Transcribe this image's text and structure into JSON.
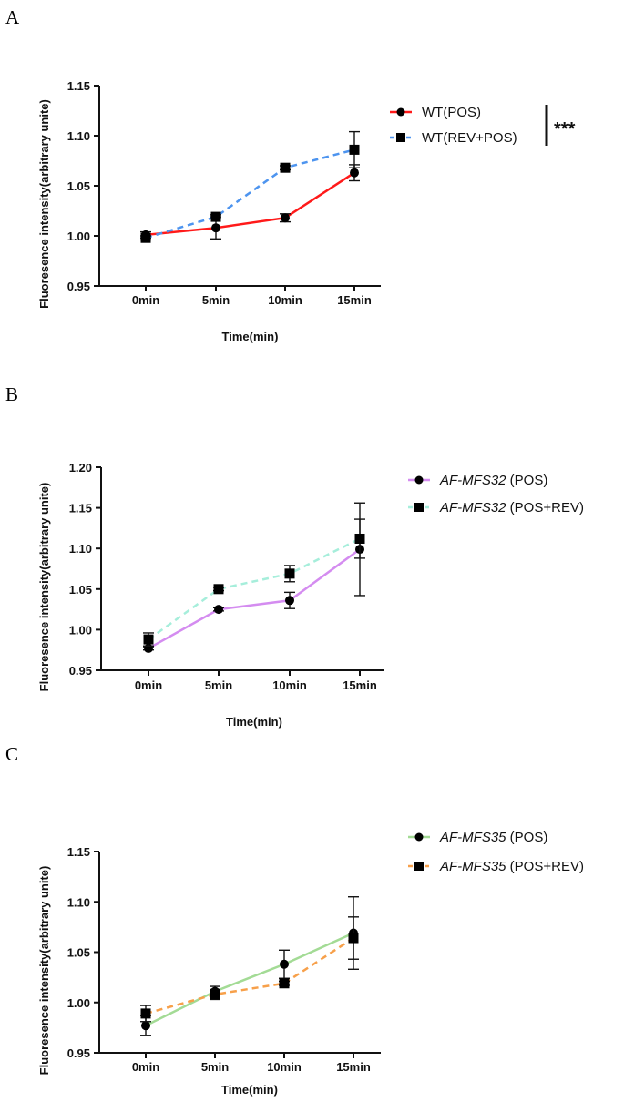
{
  "chart_data": [
    {
      "panel": "A",
      "type": "line",
      "xlabel": "Time(min)",
      "ylabel": "Fluoresence intensity(arbitrary unite)",
      "categories": [
        "0min",
        "5min",
        "10min",
        "15min"
      ],
      "ylim": [
        0.95,
        1.15
      ],
      "yticks": [
        "0.95",
        "1.00",
        "1.05",
        "1.10",
        "1.15"
      ],
      "grid": false,
      "legend_position": "right",
      "significance": "***",
      "series": [
        {
          "name": "WT(POS)",
          "name_italic": "",
          "name_rest": "WT(POS)",
          "color": "#ff1a1a",
          "dash": false,
          "marker": "circle",
          "values": [
            1.001,
            1.008,
            1.018,
            1.063
          ],
          "errors": [
            0.003,
            0.011,
            0.004,
            0.008
          ]
        },
        {
          "name": "WT(REV+POS)",
          "name_italic": "",
          "name_rest": "WT(REV+POS)",
          "color": "#4d94ef",
          "dash": true,
          "marker": "square",
          "values": [
            0.998,
            1.019,
            1.068,
            1.086
          ],
          "errors": [
            0.002,
            0.002,
            0.002,
            0.018
          ]
        }
      ]
    },
    {
      "panel": "B",
      "type": "line",
      "xlabel": "Time(min)",
      "ylabel": "Fluoresence intensity(arbitrary unite)",
      "categories": [
        "0min",
        "5min",
        "10min",
        "15min"
      ],
      "ylim": [
        0.95,
        1.2
      ],
      "yticks": [
        "0.95",
        "1.00",
        "1.05",
        "1.10",
        "1.15",
        "1.20"
      ],
      "grid": false,
      "legend_position": "right",
      "series": [
        {
          "name": "AF-MFS32 (POS)",
          "name_italic": "AF-MFS32",
          "name_rest": " (POS)",
          "color": "#d48cf0",
          "dash": false,
          "marker": "circle",
          "values": [
            0.977,
            1.025,
            1.036,
            1.099
          ],
          "errors": [
            0.002,
            0.002,
            0.01,
            0.057
          ]
        },
        {
          "name": "AF-MFS32 (POS+REV)",
          "name_italic": "AF-MFS32",
          "name_rest": " (POS+REV)",
          "color": "#a6eedb",
          "dash": true,
          "marker": "square",
          "values": [
            0.988,
            1.05,
            1.069,
            1.112
          ],
          "errors": [
            0.008,
            0.002,
            0.01,
            0.024
          ]
        }
      ]
    },
    {
      "panel": "C",
      "type": "line",
      "xlabel": "Time(min)",
      "ylabel": "Fluoresence intensity(arbitrary unite)",
      "categories": [
        "0min",
        "5min",
        "10min",
        "15min"
      ],
      "ylim": [
        0.95,
        1.15
      ],
      "yticks": [
        "0.95",
        "1.00",
        "1.05",
        "1.10",
        "1.15"
      ],
      "grid": false,
      "legend_position": "right",
      "series": [
        {
          "name": "AF-MFS35 (POS)",
          "name_italic": "AF-MFS35",
          "name_rest": " (POS)",
          "color": "#a3db95",
          "dash": false,
          "marker": "circle",
          "values": [
            0.977,
            1.011,
            1.038,
            1.069
          ],
          "errors": [
            0.01,
            0.005,
            0.014,
            0.036
          ]
        },
        {
          "name": "AF-MFS35 (POS+REV)",
          "name_italic": "AF-MFS35",
          "name_rest": " (POS+REV)",
          "color": "#f7a04a",
          "dash": true,
          "marker": "square",
          "values": [
            0.989,
            1.008,
            1.019,
            1.064
          ],
          "errors": [
            0.008,
            0.005,
            0.002,
            0.021
          ]
        }
      ]
    }
  ]
}
